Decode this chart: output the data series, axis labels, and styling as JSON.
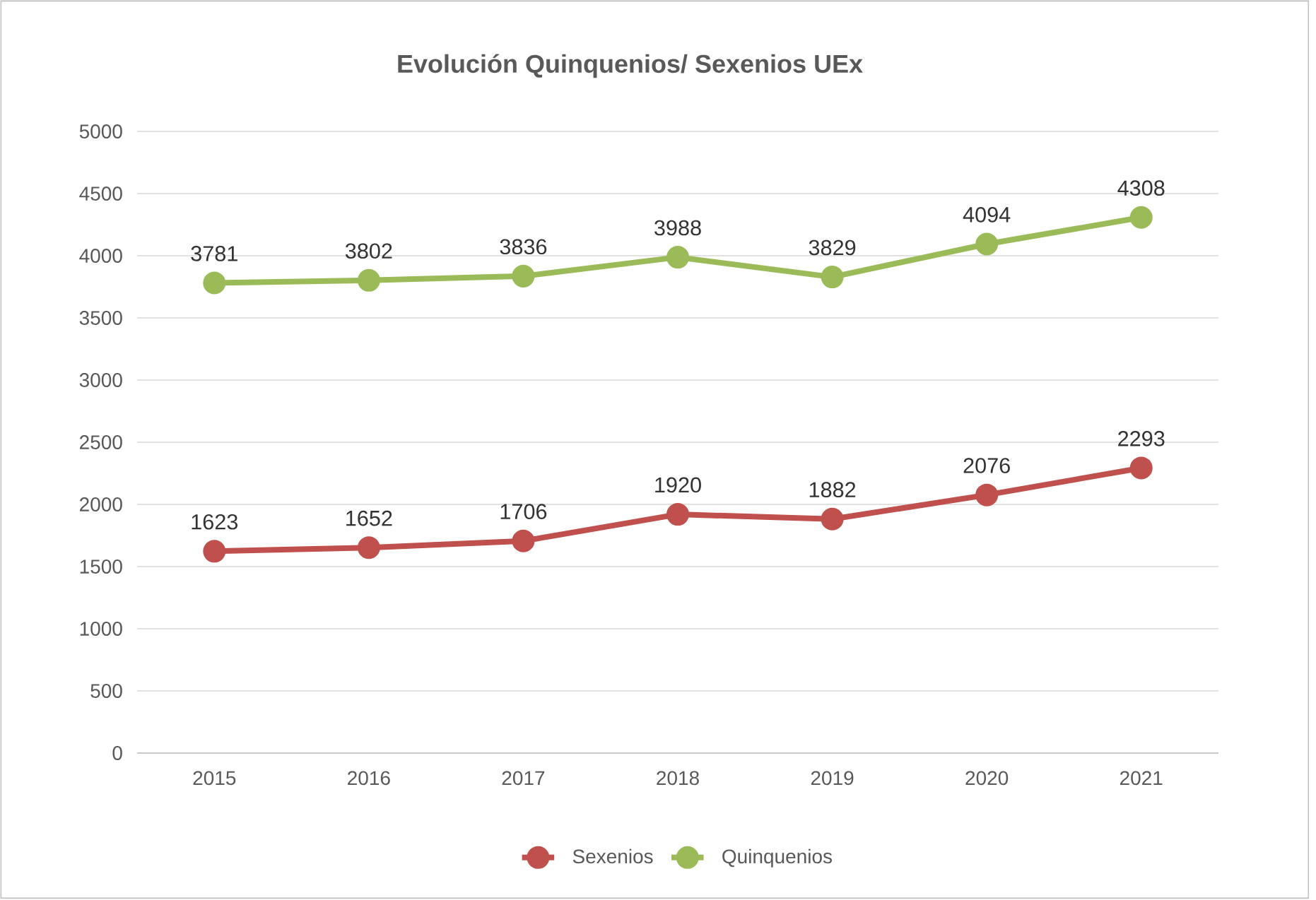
{
  "chart_data": {
    "type": "line",
    "title": "Evolución Quinquenios/ Sexenios UEx",
    "categories": [
      "2015",
      "2016",
      "2017",
      "2018",
      "2019",
      "2020",
      "2021"
    ],
    "series": [
      {
        "name": "Sexenios",
        "color": "#c0504d",
        "values": [
          1623,
          1652,
          1706,
          1920,
          1882,
          2076,
          2293
        ]
      },
      {
        "name": "Quinquenios",
        "color": "#9bbb59",
        "values": [
          3781,
          3802,
          3836,
          3988,
          3829,
          4094,
          4308
        ]
      }
    ],
    "ylim": [
      0,
      5000
    ],
    "yticks": [
      0,
      500,
      1000,
      1500,
      2000,
      2500,
      3000,
      3500,
      4000,
      4500,
      5000
    ],
    "grid": "y",
    "legend": "bottom",
    "marker": "circle",
    "line_style": "solid",
    "data_labels": true
  }
}
